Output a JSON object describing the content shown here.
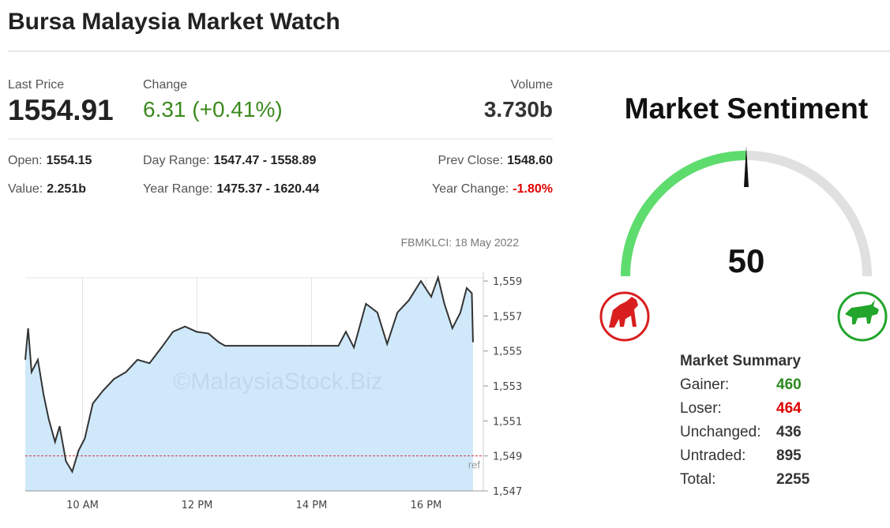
{
  "header": {
    "title": "Bursa Malaysia Market Watch"
  },
  "quote": {
    "last_price_label": "Last Price",
    "last_price": "1554.91",
    "change_label": "Change",
    "change": "6.31 (+0.41%)",
    "volume_label": "Volume",
    "volume": "3.730b"
  },
  "details": [
    {
      "label": "Open:",
      "value": "1554.15"
    },
    {
      "label": "Day Range:",
      "value": "1547.47 - 1558.89"
    },
    {
      "label": "Prev Close:",
      "value": "1548.60"
    },
    {
      "label": "Value:",
      "value": "2.251b"
    },
    {
      "label": "Year Range:",
      "value": "1475.37 - 1620.44"
    },
    {
      "label": "Year Change:",
      "value": "-1.80%",
      "color": "#e00000"
    }
  ],
  "chart_data": {
    "type": "line",
    "subtitle": "FBMKLCI: 18 May 2022",
    "watermark": "©MalaysiaStock.Biz",
    "x": [
      9.0,
      9.05,
      9.11,
      9.22,
      9.32,
      9.41,
      9.52,
      9.6,
      9.71,
      9.82,
      9.93,
      10.04,
      10.18,
      10.35,
      10.55,
      10.76,
      10.96,
      11.17,
      11.38,
      11.58,
      11.79,
      11.99,
      12.2,
      12.38,
      12.49,
      14.47,
      14.6,
      14.74,
      14.95,
      15.15,
      15.32,
      15.5,
      15.7,
      15.91,
      16.09,
      16.21,
      16.32,
      16.46,
      16.6,
      16.71,
      16.8,
      16.82
    ],
    "series": [
      {
        "name": "FBMKLCI",
        "color": "#333333",
        "fill": "#cfe9fb",
        "values": [
          1554.5,
          1556.3,
          1553.8,
          1554.5,
          1552.5,
          1551.1,
          1549.8,
          1550.7,
          1548.7,
          1548.1,
          1549.3,
          1550.0,
          1552.0,
          1552.7,
          1553.4,
          1553.8,
          1554.5,
          1554.3,
          1555.2,
          1556.1,
          1556.4,
          1556.1,
          1556.0,
          1555.5,
          1555.3,
          1555.3,
          1556.1,
          1555.2,
          1557.7,
          1557.2,
          1555.4,
          1557.2,
          1557.9,
          1559.0,
          1558.1,
          1559.2,
          1557.7,
          1556.3,
          1557.2,
          1558.6,
          1558.3,
          1555.5
        ]
      }
    ],
    "ref_line": {
      "value": 1549.0,
      "label": "ref",
      "color": "#d9333f"
    },
    "xlim": [
      9,
      17
    ],
    "xticks": [
      {
        "value": 10,
        "label": "10 AM"
      },
      {
        "value": 12,
        "label": "12 PM"
      },
      {
        "value": 14,
        "label": "14 PM"
      },
      {
        "value": 16,
        "label": "16 PM"
      }
    ],
    "ylim": [
      1547,
      1559.5
    ],
    "yticks": [
      {
        "value": 1547,
        "label": "1,547"
      },
      {
        "value": 1549,
        "label": "1,549"
      },
      {
        "value": 1551,
        "label": "1,551"
      },
      {
        "value": 1553,
        "label": "1,553"
      },
      {
        "value": 1555,
        "label": "1,555"
      },
      {
        "value": 1557,
        "label": "1,557"
      },
      {
        "value": 1559,
        "label": "1,559"
      }
    ],
    "grid": "x"
  },
  "sentiment": {
    "title": "Market Sentiment",
    "value": 50,
    "color": "#5fdc6e"
  },
  "summary": {
    "title": "Market Summary",
    "rows": [
      {
        "label": "Gainer:",
        "value": "460",
        "color": "#2a8a1e"
      },
      {
        "label": "Loser:",
        "value": "464",
        "color": "#e00000"
      },
      {
        "label": "Unchanged:",
        "value": "436",
        "color": "#333333"
      },
      {
        "label": "Untraded:",
        "value": "895",
        "color": "#333333"
      },
      {
        "label": "Total:",
        "value": "2255",
        "color": "#333333"
      }
    ]
  }
}
